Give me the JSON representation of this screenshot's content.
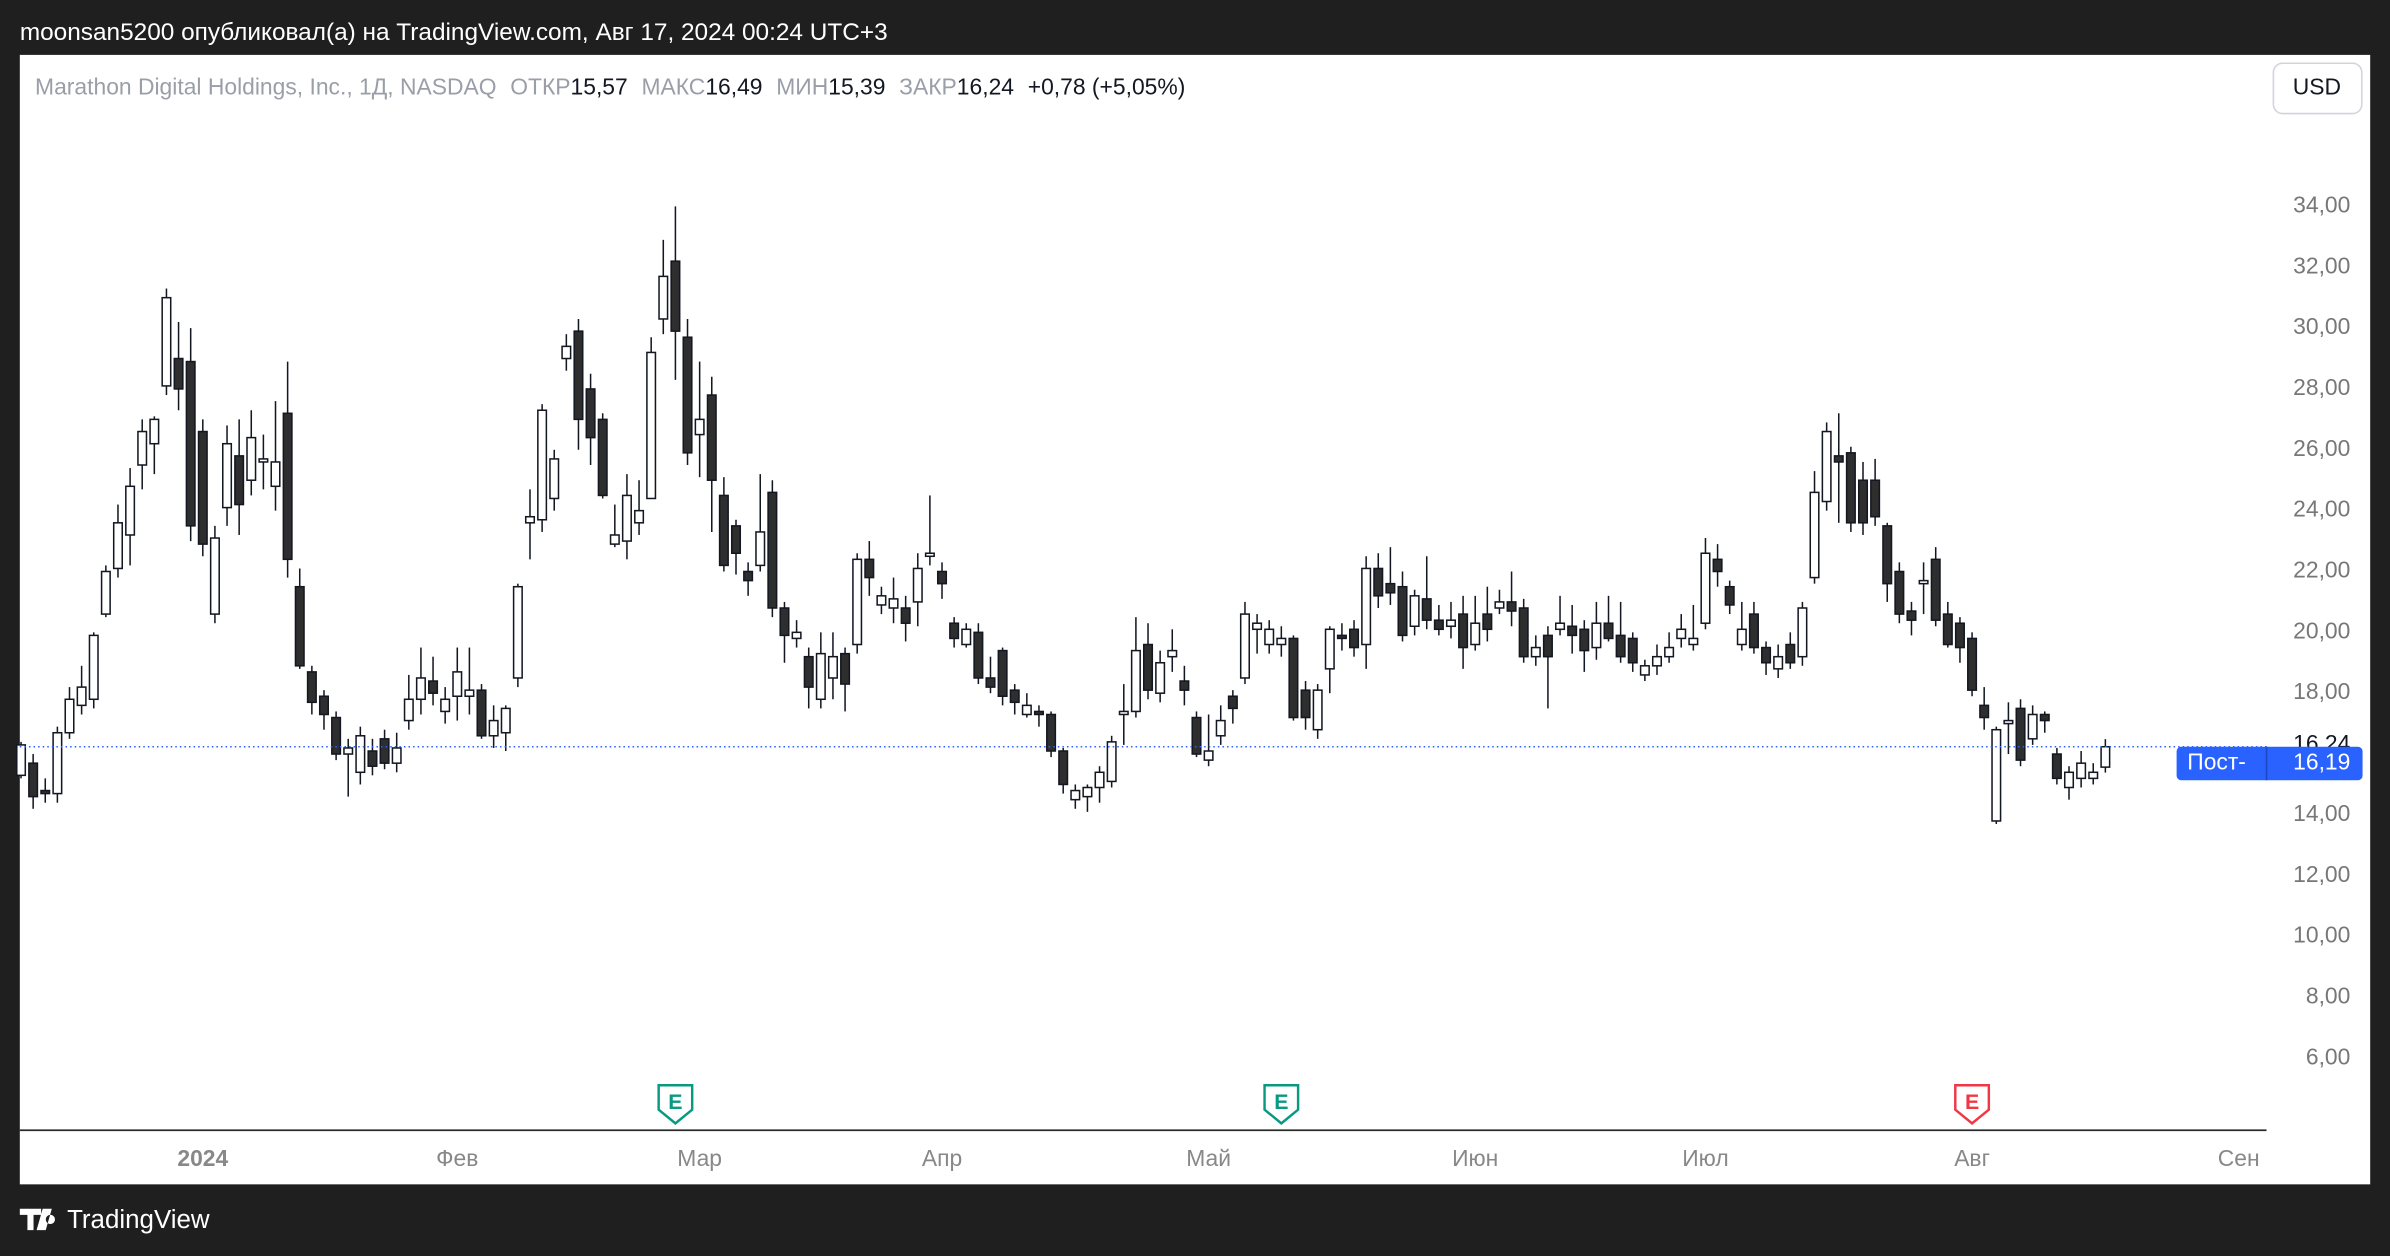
{
  "header": {
    "publisher": "moonsan5200 опубликовал(а) на TradingView.com, Авг 17, 2024 00:24 UTC+3",
    "symbol": "Marathon Digital Holdings, Inc., 1Д, NASDAQ",
    "open_name": "ОТКР",
    "open": "15,57",
    "high_name": "МАКС",
    "high": "16,49",
    "low_name": "МИН",
    "low": "15,39",
    "close_name": "ЗАКР",
    "close": "16,24",
    "change": "+0,78 (+5,05%)",
    "currency": "USD",
    "brand": "TradingView"
  },
  "chart_data": {
    "type": "candlestick",
    "up_color": "#ffffff",
    "down_color": "#2e2e2e",
    "grid": false,
    "ylim": [
      3.66,
      38.98
    ],
    "yticks": [
      {
        "value": 34,
        "label": "34,00"
      },
      {
        "value": 32,
        "label": "32,00"
      },
      {
        "value": 30,
        "label": "30,00"
      },
      {
        "value": 28,
        "label": "28,00"
      },
      {
        "value": 26,
        "label": "26,00"
      },
      {
        "value": 24,
        "label": "24,00"
      },
      {
        "value": 22,
        "label": "22,00"
      },
      {
        "value": 20,
        "label": "20,00"
      },
      {
        "value": 18,
        "label": "18,00"
      },
      {
        "value": 14,
        "label": "14,00"
      },
      {
        "value": 12,
        "label": "12,00"
      },
      {
        "value": 10,
        "label": "10,00"
      },
      {
        "value": 8,
        "label": "8,00"
      },
      {
        "value": 6,
        "label": "6,00"
      }
    ],
    "xlim": [
      -0.1,
      185.3
    ],
    "xticks": [
      {
        "value": 15,
        "label": "2024"
      },
      {
        "value": 36,
        "label": "Фев"
      },
      {
        "value": 56,
        "label": "Мар"
      },
      {
        "value": 76,
        "label": "Апр"
      },
      {
        "value": 98,
        "label": "Май"
      },
      {
        "value": 120,
        "label": "Июн"
      },
      {
        "value": 139,
        "label": "Июл"
      },
      {
        "value": 161,
        "label": "Авг"
      },
      {
        "value": 183,
        "label": "Сен"
      }
    ],
    "price_line": {
      "value": 16.24,
      "label": "16,24",
      "color": "#2962ff"
    },
    "post_market": {
      "name": "Пост-",
      "value": 16.19,
      "value_label": "16,19",
      "color": "#2962ff"
    },
    "earnings": [
      {
        "x": 54,
        "label": "E",
        "color": "#089981"
      },
      {
        "x": 104,
        "label": "E",
        "color": "#089981"
      },
      {
        "x": 161,
        "label": "E",
        "color": "#f23645"
      }
    ],
    "open": [
      15.3,
      15.7,
      14.8,
      14.7,
      16.7,
      17.6,
      17.8,
      20.6,
      22.1,
      23.2,
      25.5,
      26.2,
      28.1,
      29.0,
      28.9,
      26.6,
      20.6,
      24.1,
      25.8,
      25.0,
      25.6,
      24.8,
      27.2,
      21.5,
      18.7,
      17.9,
      17.2,
      16.0,
      15.4,
      16.1,
      16.5,
      15.7,
      17.1,
      17.8,
      18.4,
      17.4,
      17.9,
      17.9,
      18.1,
      16.6,
      16.7,
      18.5,
      23.6,
      23.7,
      24.4,
      29.0,
      29.9,
      28.0,
      27.0,
      22.9,
      23.0,
      23.6,
      24.4,
      30.3,
      32.2,
      29.7,
      26.5,
      27.8,
      24.5,
      23.5,
      22.0,
      22.2,
      24.6,
      20.8,
      19.8,
      19.2,
      17.8,
      18.5,
      19.3,
      19.6,
      22.4,
      20.9,
      20.8,
      20.8,
      21.0,
      22.5,
      22.0,
      20.3,
      19.6,
      20.0,
      18.5,
      19.4,
      18.1,
      17.3,
      17.4,
      17.3,
      16.1,
      14.5,
      14.6,
      14.9,
      15.1,
      17.3,
      17.4,
      19.6,
      18.0,
      19.2,
      18.4,
      17.2,
      15.8,
      16.6,
      17.9,
      18.5,
      20.1,
      19.6,
      19.6,
      19.8,
      18.1,
      16.8,
      18.8,
      19.9,
      20.1,
      19.6,
      22.1,
      21.6,
      21.5,
      20.2,
      21.1,
      20.4,
      20.2,
      20.6,
      19.6,
      20.6,
      20.8,
      21.0,
      20.8,
      19.2,
      19.9,
      20.1,
      20.2,
      20.1,
      19.5,
      20.3,
      19.9,
      19.8,
      18.6,
      18.9,
      19.2,
      19.8,
      19.6,
      20.3,
      22.4,
      21.5,
      19.6,
      20.6,
      19.5,
      18.8,
      19.6,
      19.2,
      21.8,
      24.3,
      25.8,
      25.9,
      25.0,
      25.0,
      23.5,
      22.0,
      20.7,
      21.6,
      22.4,
      20.6,
      20.3,
      19.8,
      17.6,
      13.8,
      17.0,
      17.5,
      16.5,
      17.3,
      16.0,
      14.9,
      15.2,
      15.2,
      15.57
    ],
    "high": [
      16.4,
      16.0,
      15.2,
      16.9,
      18.2,
      18.9,
      20.0,
      22.2,
      24.2,
      25.4,
      27.0,
      27.1,
      31.3,
      30.2,
      30.0,
      27.0,
      23.5,
      26.8,
      27.0,
      27.3,
      26.5,
      27.6,
      28.9,
      22.1,
      18.9,
      18.1,
      17.4,
      16.5,
      16.9,
      16.5,
      16.8,
      16.7,
      18.6,
      19.5,
      19.2,
      18.2,
      19.5,
      19.5,
      18.3,
      17.6,
      17.6,
      21.6,
      24.7,
      27.5,
      26.0,
      29.8,
      30.3,
      28.5,
      27.2,
      24.2,
      25.2,
      25.0,
      29.7,
      32.9,
      34.0,
      30.3,
      28.9,
      28.4,
      25.1,
      23.7,
      22.3,
      25.2,
      25.0,
      21.0,
      20.4,
      19.5,
      20.0,
      20.0,
      19.5,
      22.6,
      23.0,
      21.5,
      21.8,
      21.2,
      22.6,
      24.5,
      22.3,
      20.5,
      20.3,
      20.3,
      19.2,
      19.5,
      18.3,
      18.0,
      17.6,
      17.4,
      16.2,
      15.0,
      15.0,
      15.6,
      16.6,
      18.3,
      20.5,
      20.3,
      19.4,
      20.1,
      18.9,
      17.4,
      17.3,
      17.6,
      18.1,
      21.0,
      20.6,
      20.4,
      20.2,
      19.9,
      18.4,
      18.3,
      20.2,
      20.3,
      20.4,
      22.5,
      22.6,
      22.8,
      22.0,
      21.4,
      22.5,
      20.9,
      21.0,
      21.2,
      21.2,
      21.5,
      21.4,
      22.0,
      21.1,
      19.9,
      20.2,
      21.2,
      20.9,
      20.4,
      21.0,
      21.2,
      21.0,
      20.0,
      19.1,
      19.6,
      20.0,
      20.6,
      20.9,
      23.1,
      22.9,
      21.7,
      21.0,
      21.0,
      19.7,
      19.6,
      20.0,
      21.0,
      25.3,
      26.9,
      27.2,
      26.1,
      25.6,
      25.7,
      23.6,
      22.3,
      21.0,
      22.3,
      22.8,
      21.0,
      20.5,
      20.0,
      18.2,
      16.9,
      17.7,
      17.8,
      17.6,
      17.4,
      16.2,
      15.6,
      16.1,
      15.7,
      16.49
    ],
    "low": [
      15.2,
      14.2,
      14.4,
      14.4,
      16.5,
      17.3,
      17.5,
      20.5,
      21.8,
      22.2,
      24.7,
      25.2,
      27.8,
      27.3,
      23.0,
      22.5,
      20.3,
      23.5,
      23.2,
      24.5,
      24.7,
      24.0,
      21.8,
      18.8,
      17.3,
      16.8,
      15.8,
      14.6,
      15.0,
      15.3,
      15.5,
      15.4,
      16.8,
      17.3,
      17.6,
      17.0,
      17.1,
      17.3,
      16.5,
      16.2,
      16.1,
      18.2,
      22.4,
      23.3,
      24.0,
      28.6,
      26.0,
      25.5,
      24.4,
      22.8,
      22.4,
      23.2,
      24.4,
      29.8,
      28.3,
      25.5,
      25.1,
      23.3,
      22.0,
      21.9,
      21.2,
      22.0,
      20.5,
      19.0,
      19.5,
      17.5,
      17.5,
      17.8,
      17.4,
      19.3,
      21.2,
      20.6,
      20.3,
      19.7,
      20.2,
      22.2,
      21.1,
      19.5,
      19.5,
      18.3,
      18.0,
      17.6,
      17.3,
      17.2,
      16.9,
      15.9,
      14.7,
      14.2,
      14.1,
      14.4,
      14.9,
      16.3,
      17.2,
      17.8,
      17.7,
      18.7,
      17.6,
      15.9,
      15.6,
      16.3,
      17.0,
      18.3,
      19.3,
      19.3,
      19.2,
      17.1,
      16.8,
      16.5,
      18.0,
      19.4,
      19.2,
      18.8,
      20.8,
      20.9,
      19.7,
      19.9,
      20.1,
      19.9,
      19.8,
      18.8,
      19.4,
      19.7,
      20.6,
      20.2,
      19.0,
      18.9,
      17.5,
      19.9,
      19.3,
      18.7,
      19.1,
      19.7,
      19.0,
      18.7,
      18.4,
      18.6,
      19.0,
      19.5,
      19.4,
      20.1,
      21.5,
      20.6,
      19.4,
      19.3,
      18.6,
      18.5,
      18.8,
      18.9,
      21.6,
      24.0,
      23.6,
      23.3,
      23.2,
      23.5,
      21.0,
      20.3,
      19.9,
      20.6,
      20.2,
      19.5,
      19.0,
      17.9,
      16.8,
      13.7,
      16.0,
      15.6,
      16.3,
      16.7,
      15.0,
      14.5,
      14.9,
      15.0,
      15.39
    ],
    "close": [
      16.3,
      14.6,
      14.7,
      16.7,
      17.8,
      18.2,
      19.9,
      22.0,
      23.6,
      24.8,
      26.6,
      27.0,
      31.0,
      28.0,
      23.5,
      22.9,
      23.1,
      26.2,
      24.2,
      26.4,
      25.7,
      25.6,
      22.4,
      18.9,
      17.7,
      17.3,
      16.0,
      16.2,
      16.6,
      15.6,
      15.7,
      16.2,
      17.8,
      18.5,
      18.0,
      17.8,
      18.7,
      18.1,
      16.6,
      17.1,
      17.5,
      21.5,
      23.8,
      27.3,
      25.7,
      29.4,
      27.0,
      26.4,
      24.5,
      23.2,
      24.5,
      24.0,
      29.2,
      31.7,
      29.9,
      25.9,
      27.0,
      25.0,
      22.2,
      22.6,
      21.7,
      23.3,
      20.8,
      19.9,
      20.0,
      18.2,
      19.3,
      19.2,
      18.3,
      22.4,
      21.8,
      21.2,
      21.1,
      20.3,
      22.1,
      22.6,
      21.6,
      19.8,
      20.1,
      18.5,
      18.2,
      17.9,
      17.7,
      17.6,
      17.3,
      16.1,
      15.0,
      14.8,
      14.9,
      15.4,
      16.4,
      17.4,
      19.4,
      18.1,
      19.0,
      19.4,
      18.1,
      16.0,
      16.1,
      17.1,
      17.5,
      20.6,
      20.3,
      20.1,
      19.8,
      17.2,
      17.2,
      18.1,
      20.1,
      19.8,
      19.5,
      22.1,
      21.2,
      21.3,
      19.9,
      21.2,
      20.4,
      20.1,
      20.4,
      19.5,
      20.3,
      20.1,
      21.0,
      20.7,
      19.2,
      19.5,
      19.2,
      20.3,
      19.9,
      19.4,
      20.3,
      19.8,
      19.2,
      19.0,
      18.9,
      19.2,
      19.5,
      20.1,
      19.8,
      22.6,
      22.0,
      20.9,
      20.1,
      19.5,
      19.0,
      19.2,
      19.0,
      20.8,
      24.6,
      26.6,
      25.6,
      23.6,
      23.6,
      23.8,
      21.6,
      20.6,
      20.4,
      21.7,
      20.4,
      19.6,
      19.5,
      18.1,
      17.2,
      16.8,
      17.1,
      15.8,
      17.3,
      17.1,
      15.2,
      15.4,
      15.7,
      15.4,
      16.24
    ]
  }
}
